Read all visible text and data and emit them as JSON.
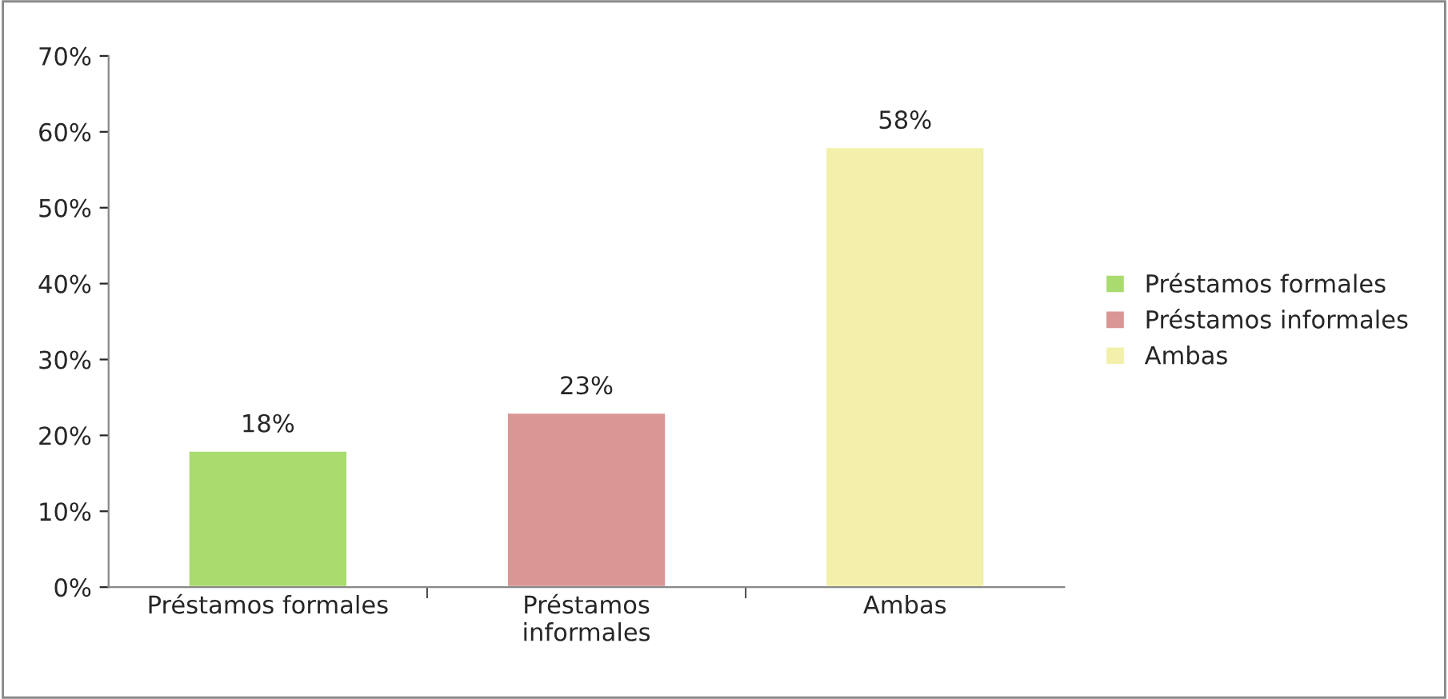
{
  "chart_data": {
    "type": "bar",
    "categories": [
      "Préstamos formales",
      "Préstamos\ninformales",
      "Ambas"
    ],
    "series": [
      {
        "name": "Préstamos formales",
        "color": "#a9db6f",
        "values": [
          18,
          null,
          null
        ],
        "value_labels": [
          "18%",
          null,
          null
        ]
      },
      {
        "name": "Préstamos informales",
        "color": "#d99694",
        "values": [
          null,
          23,
          null
        ],
        "value_labels": [
          null,
          "23%",
          null
        ]
      },
      {
        "name": "Ambas",
        "color": "#f2f0aa",
        "values": [
          null,
          null,
          58
        ],
        "value_labels": [
          null,
          null,
          "58%"
        ]
      }
    ],
    "ylim": [
      0,
      70
    ],
    "yticks": [
      {
        "value": 0,
        "label": "0%"
      },
      {
        "value": 10,
        "label": "10%"
      },
      {
        "value": 20,
        "label": "20%"
      },
      {
        "value": 30,
        "label": "30%"
      },
      {
        "value": 40,
        "label": "40%"
      },
      {
        "value": 50,
        "label": "50%"
      },
      {
        "value": 60,
        "label": "60%"
      },
      {
        "value": 70,
        "label": "70%"
      }
    ],
    "grid": false,
    "legend": "right"
  }
}
